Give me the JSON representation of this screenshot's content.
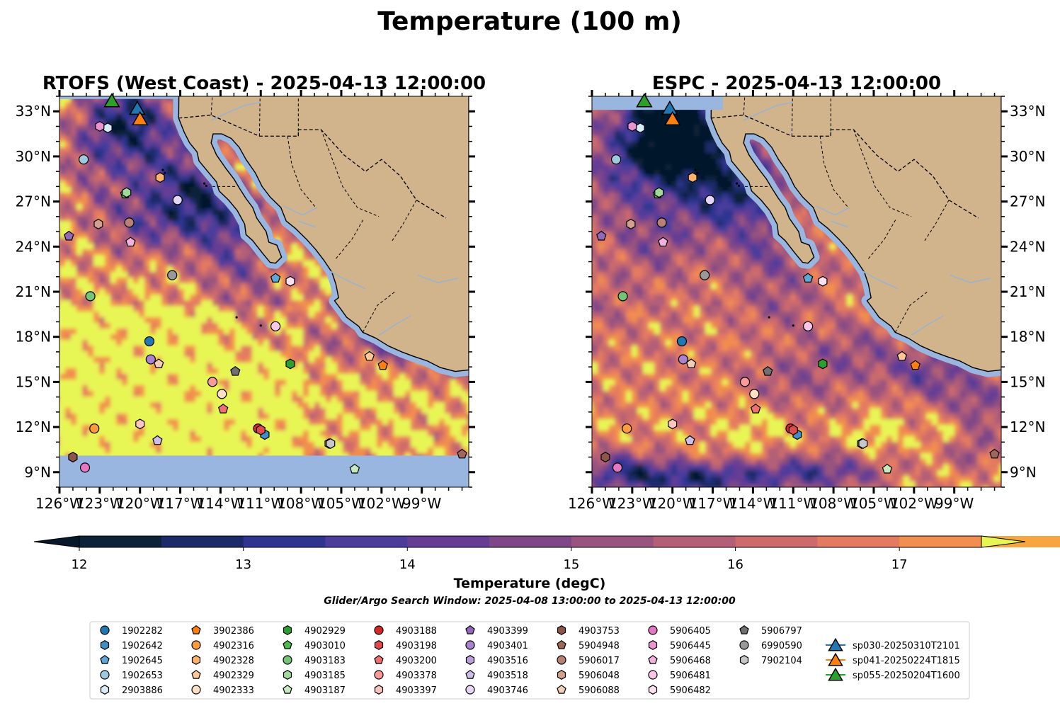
{
  "suptitle": "Temperature (100 m)",
  "note": "Glider/Argo Search Window: 2025-04-08 13:00:00 to 2025-04-13 12:00:00",
  "chart_data": {
    "type": "heatmap",
    "panels": [
      {
        "title": "RTOFS (West Coast) - 2025-04-13 12:00:00",
        "lat_labels_side": "left",
        "missing_band_below_lat": 10.1,
        "style": "rtofs"
      },
      {
        "title": "ESPC - 2025-04-13 12:00:00",
        "lat_labels_side": "right",
        "style": "espc"
      }
    ],
    "extent": {
      "lon": [
        -126,
        -95.5
      ],
      "lat": [
        8,
        34
      ]
    },
    "xticks": [
      -126,
      -123,
      -120,
      -117,
      -114,
      -111,
      -108,
      -105,
      -102,
      -99
    ],
    "xticklabels": [
      "126°W",
      "123°W",
      "120°W",
      "117°W",
      "114°W",
      "111°W",
      "108°W",
      "105°W",
      "102°W",
      "99°W"
    ],
    "yticks": [
      9,
      12,
      15,
      18,
      21,
      24,
      27,
      30,
      33
    ],
    "yticklabels": [
      "9°N",
      "12°N",
      "15°N",
      "18°N",
      "21°N",
      "24°N",
      "27°N",
      "30°N",
      "33°N"
    ],
    "colorbar": {
      "label": "Temperature (degC)",
      "min": 12,
      "max": 17.5,
      "step": 0.5,
      "ticks": [
        12,
        13,
        14,
        15,
        16,
        17
      ],
      "extend": "both",
      "colors": [
        "#0b2238",
        "#1b2b69",
        "#2f3490",
        "#4c3c9c",
        "#653e94",
        "#7e4788",
        "#98537e",
        "#b35f77",
        "#cc6a6c",
        "#e47a60",
        "#f28e4e",
        "#f8a540",
        "#f9be3c"
      ],
      "over_color": "#e8f654",
      "under_color": "#06182a"
    },
    "colors": {
      "land": "#d2b48c",
      "shelf": "#99b6e0",
      "missing": "#99b6e0",
      "river": "#9ab3cf"
    },
    "platforms": [
      {
        "id": "1902282",
        "lon": -119.3,
        "lat": 17.7,
        "marker": "circle",
        "color": "#1f77b4"
      },
      {
        "id": "1902642",
        "lon": -110.7,
        "lat": 11.5,
        "marker": "hexagon",
        "color": "#3f8fc6"
      },
      {
        "id": "1902645",
        "lon": -109.9,
        "lat": 21.9,
        "marker": "pentagon",
        "color": "#5fa7d6"
      },
      {
        "id": "1902653",
        "lon": -124.2,
        "lat": 29.8,
        "marker": "circle",
        "color": "#9ecae1"
      },
      {
        "id": "2903886",
        "lon": -122.4,
        "lat": 31.9,
        "marker": "hexagon",
        "color": "#d6ecf7"
      },
      {
        "id": "3902386",
        "lon": -101.9,
        "lat": 16.1,
        "marker": "pentagon",
        "color": "#ff7f0e"
      },
      {
        "id": "4902316",
        "lon": -123.4,
        "lat": 11.9,
        "marker": "circle",
        "color": "#ff9b3f"
      },
      {
        "id": "4902328",
        "lon": -118.5,
        "lat": 28.6,
        "marker": "hexagon",
        "color": "#ffb26b"
      },
      {
        "id": "4902329",
        "lon": -102.9,
        "lat": 16.7,
        "marker": "pentagon",
        "color": "#ffc898"
      },
      {
        "id": "4902333",
        "lon": -113.9,
        "lat": 14.2,
        "marker": "circle",
        "color": "#ffe0c2"
      },
      {
        "id": "4902929",
        "lon": -108.8,
        "lat": 16.2,
        "marker": "hexagon",
        "color": "#2ca02c"
      },
      {
        "id": "4903010",
        "lon": -121.1,
        "lat": 27.5,
        "marker": "pentagon",
        "color": "#4cba4c"
      },
      {
        "id": "4903183",
        "lon": -123.7,
        "lat": 20.7,
        "marker": "circle",
        "color": "#74c476"
      },
      {
        "id": "4903185",
        "lon": -121.0,
        "lat": 27.6,
        "marker": "hexagon",
        "color": "#a1d99b"
      },
      {
        "id": "4903187",
        "lon": -104.0,
        "lat": 9.2,
        "marker": "pentagon",
        "color": "#c7e9c0"
      },
      {
        "id": "4903188",
        "lon": -111.2,
        "lat": 11.9,
        "marker": "circle",
        "color": "#d62728"
      },
      {
        "id": "4903198",
        "lon": -111.0,
        "lat": 11.8,
        "marker": "hexagon",
        "color": "#e2494a"
      },
      {
        "id": "4903200",
        "lon": -113.8,
        "lat": 13.2,
        "marker": "pentagon",
        "color": "#f07070"
      },
      {
        "id": "4903378",
        "lon": -114.6,
        "lat": 15.0,
        "marker": "circle",
        "color": "#fb9a99"
      },
      {
        "id": "4903397",
        "lon": -120.0,
        "lat": 12.2,
        "marker": "hexagon",
        "color": "#fcc5c0"
      },
      {
        "id": "4903399",
        "lon": -125.3,
        "lat": 24.7,
        "marker": "pentagon",
        "color": "#9467bd"
      },
      {
        "id": "4903401",
        "lon": -119.2,
        "lat": 16.5,
        "marker": "circle",
        "color": "#a983cf"
      },
      {
        "id": "4903516",
        "lon": -105.9,
        "lat": 10.9,
        "marker": "hexagon",
        "color": "#bca0dc"
      },
      {
        "id": "4903518",
        "lon": -118.7,
        "lat": 11.1,
        "marker": "pentagon",
        "color": "#cfbde8"
      },
      {
        "id": "4903746",
        "lon": -117.2,
        "lat": 27.1,
        "marker": "circle",
        "color": "#e5d6f5"
      },
      {
        "id": "4903753",
        "lon": -125.0,
        "lat": 10.0,
        "marker": "hexagon",
        "color": "#8c564b"
      },
      {
        "id": "5904948",
        "lon": -96.0,
        "lat": 10.2,
        "marker": "pentagon",
        "color": "#a0685c"
      },
      {
        "id": "5906017",
        "lon": -120.8,
        "lat": 25.6,
        "marker": "circle",
        "color": "#b78273"
      },
      {
        "id": "5906048",
        "lon": -123.1,
        "lat": 25.5,
        "marker": "hexagon",
        "color": "#d2a08e"
      },
      {
        "id": "5906088",
        "lon": -118.6,
        "lat": 16.2,
        "marker": "pentagon",
        "color": "#f2cdb8"
      },
      {
        "id": "5906405",
        "lon": -124.1,
        "lat": 9.3,
        "marker": "circle",
        "color": "#e377c2"
      },
      {
        "id": "5906445",
        "lon": -123.0,
        "lat": 32.0,
        "marker": "hexagon",
        "color": "#ea93d1"
      },
      {
        "id": "5906468",
        "lon": -120.7,
        "lat": 24.3,
        "marker": "pentagon",
        "color": "#f2b2df"
      },
      {
        "id": "5906481",
        "lon": -109.9,
        "lat": 18.7,
        "marker": "circle",
        "color": "#f7c6e8"
      },
      {
        "id": "5906482",
        "lon": -108.8,
        "lat": 21.7,
        "marker": "hexagon",
        "color": "#fbe0f1"
      },
      {
        "id": "5906797",
        "lon": -112.9,
        "lat": 15.7,
        "marker": "pentagon",
        "color": "#707070"
      },
      {
        "id": "6990590",
        "lon": -117.6,
        "lat": 22.1,
        "marker": "circle",
        "color": "#999999"
      },
      {
        "id": "7902104",
        "lon": -105.8,
        "lat": 10.9,
        "marker": "hexagon",
        "color": "#c7c7c7"
      },
      {
        "id": "sp030-20250310T2101",
        "lon": -120.2,
        "lat": 33.2,
        "marker": "triangle",
        "color": "#1f77b4",
        "glider": true
      },
      {
        "id": "sp041-20250224T1815",
        "lon": -120.0,
        "lat": 32.5,
        "marker": "triangle",
        "color": "#ff7f0e",
        "glider": true
      },
      {
        "id": "sp055-20250204T1600",
        "lon": -122.1,
        "lat": 33.7,
        "marker": "triangle",
        "color": "#2ca02c",
        "glider": true
      }
    ]
  }
}
